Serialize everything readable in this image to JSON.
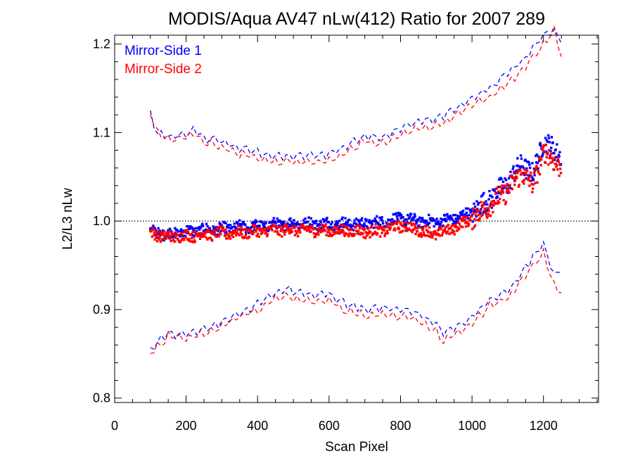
{
  "chart_data": {
    "type": "scatter",
    "title": "MODIS/Aqua AV47 nLw(412) Ratio for 2007 289",
    "xlabel": "Scan Pixel",
    "ylabel": "L2/L3 nLw",
    "xlim": [
      0,
      1354
    ],
    "ylim": [
      0.795,
      1.21
    ],
    "x_ticks": [
      0,
      200,
      400,
      600,
      800,
      1000,
      1200
    ],
    "y_ticks": [
      0.8,
      0.9,
      1.0,
      1.1,
      1.2
    ],
    "x_tick_labels": [
      "0",
      "200",
      "400",
      "600",
      "800",
      "1000",
      "1200"
    ],
    "y_tick_labels": [
      "0.8",
      "0.9",
      "1.0",
      "1.1",
      "1.2"
    ],
    "reference_line": 1.0,
    "legend_position": "top-left",
    "series": [
      {
        "name": "Mirror-Side 1",
        "color": "#0000ff",
        "ratio": {
          "x": [
            100,
            150,
            200,
            250,
            300,
            350,
            400,
            450,
            500,
            550,
            600,
            650,
            700,
            750,
            800,
            850,
            900,
            950,
            1000,
            1050,
            1100,
            1140,
            1170,
            1200,
            1230,
            1250
          ],
          "y": [
            0.988,
            0.985,
            0.988,
            0.99,
            0.991,
            0.993,
            0.994,
            0.996,
            0.997,
            0.997,
            0.997,
            0.997,
            0.997,
            0.999,
            1.003,
            1.0,
            0.999,
            1.003,
            1.01,
            1.025,
            1.043,
            1.065,
            1.052,
            1.09,
            1.08,
            1.074
          ]
        },
        "upper": {
          "x": [
            100,
            120,
            150,
            200,
            225,
            250,
            300,
            350,
            400,
            450,
            500,
            550,
            600,
            650,
            700,
            750,
            800,
            850,
            900,
            950,
            1000,
            1050,
            1100,
            1150,
            1200,
            1230,
            1250
          ],
          "y": [
            1.121,
            1.098,
            1.095,
            1.097,
            1.104,
            1.094,
            1.09,
            1.082,
            1.078,
            1.073,
            1.073,
            1.074,
            1.076,
            1.085,
            1.097,
            1.095,
            1.104,
            1.113,
            1.115,
            1.126,
            1.138,
            1.15,
            1.167,
            1.185,
            1.21,
            1.215,
            1.205
          ]
        },
        "lower": {
          "x": [
            100,
            120,
            150,
            200,
            250,
            300,
            350,
            400,
            450,
            480,
            500,
            550,
            600,
            650,
            700,
            750,
            800,
            850,
            900,
            920,
            950,
            1000,
            1050,
            1100,
            1150,
            1200,
            1230,
            1250
          ],
          "y": [
            0.853,
            0.862,
            0.873,
            0.872,
            0.877,
            0.886,
            0.896,
            0.906,
            0.918,
            0.924,
            0.921,
            0.918,
            0.917,
            0.906,
            0.9,
            0.902,
            0.9,
            0.896,
            0.884,
            0.873,
            0.88,
            0.89,
            0.912,
            0.92,
            0.948,
            0.973,
            0.938,
            0.945
          ]
        }
      },
      {
        "name": "Mirror-Side 2",
        "color": "#ff0000",
        "ratio": {
          "x": [
            100,
            150,
            200,
            250,
            300,
            350,
            400,
            450,
            500,
            550,
            600,
            650,
            700,
            750,
            800,
            850,
            900,
            950,
            1000,
            1050,
            1100,
            1140,
            1170,
            1200,
            1230,
            1250
          ],
          "y": [
            0.986,
            0.982,
            0.983,
            0.985,
            0.986,
            0.987,
            0.988,
            0.99,
            0.99,
            0.99,
            0.989,
            0.989,
            0.988,
            0.989,
            0.995,
            0.99,
            0.985,
            0.992,
            1.003,
            1.018,
            1.035,
            1.055,
            1.04,
            1.078,
            1.068,
            1.06
          ]
        },
        "upper": {
          "x": [
            100,
            120,
            150,
            200,
            225,
            250,
            300,
            350,
            400,
            450,
            500,
            550,
            600,
            650,
            700,
            750,
            800,
            850,
            900,
            950,
            1000,
            1050,
            1100,
            1150,
            1200,
            1230,
            1250
          ],
          "y": [
            1.121,
            1.1,
            1.092,
            1.094,
            1.098,
            1.09,
            1.083,
            1.075,
            1.072,
            1.067,
            1.068,
            1.066,
            1.068,
            1.078,
            1.09,
            1.087,
            1.097,
            1.105,
            1.108,
            1.118,
            1.13,
            1.14,
            1.155,
            1.175,
            1.2,
            1.215,
            1.185
          ]
        },
        "lower": {
          "x": [
            100,
            120,
            150,
            200,
            250,
            300,
            350,
            400,
            450,
            480,
            500,
            550,
            600,
            650,
            700,
            750,
            800,
            850,
            900,
            920,
            950,
            1000,
            1050,
            1100,
            1150,
            1200,
            1230,
            1250
          ],
          "y": [
            0.852,
            0.858,
            0.87,
            0.868,
            0.873,
            0.882,
            0.892,
            0.9,
            0.912,
            0.916,
            0.913,
            0.91,
            0.91,
            0.898,
            0.893,
            0.895,
            0.892,
            0.888,
            0.875,
            0.863,
            0.872,
            0.882,
            0.905,
            0.913,
            0.94,
            0.963,
            0.928,
            0.92
          ]
        }
      }
    ]
  }
}
